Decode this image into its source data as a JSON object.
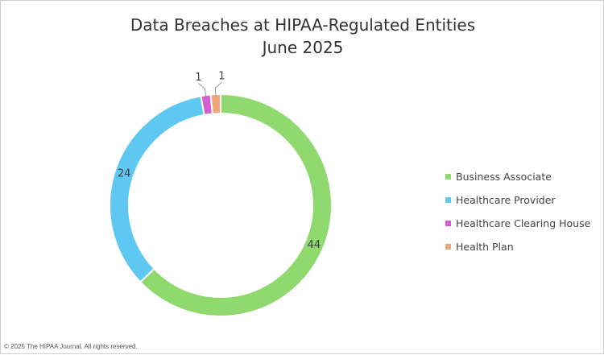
{
  "chart_data": {
    "type": "pie",
    "title": "Data Breaches at HIPAA-Regulated Entities",
    "subtitle": "June 2025",
    "categories": [
      "Business Associate",
      "Healthcare Provider",
      "Healthcare Clearing House",
      "Health Plan"
    ],
    "values": [
      44,
      24,
      1,
      1
    ],
    "colors": [
      "#8fd96e",
      "#5ec8f2",
      "#d45fd1",
      "#f2a57a"
    ],
    "donut": true,
    "legend_position": "right"
  },
  "footer": {
    "copyright": "© 2025 The HIPAA Journal. All rights reserved."
  }
}
